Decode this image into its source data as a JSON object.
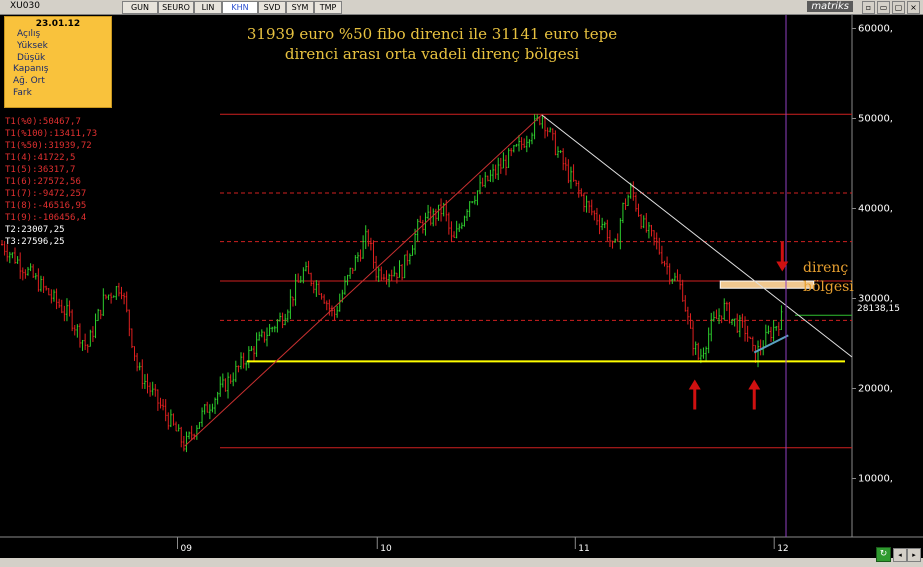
{
  "toolbar": {
    "symbol": "XU030",
    "buttons": [
      "GUN",
      "SEURO",
      "LIN",
      "KHN",
      "SVD",
      "SYM",
      "TMP"
    ],
    "active": "KHN",
    "brand": "matriks"
  },
  "infobox": {
    "date": "23.01.12",
    "rows": [
      "Açılış",
      "Yüksek",
      "Düşük",
      "Kapanış",
      "Ağ. Ort",
      "Fark"
    ]
  },
  "fibo_labels": [
    {
      "text": "T1(%0):50467,7",
      "color": "#e03030"
    },
    {
      "text": "T1(%100):13411,73",
      "color": "#e03030"
    },
    {
      "text": "T1(%50):31939,72",
      "color": "#e03030"
    },
    {
      "text": "T1(4):41722,5",
      "color": "#e03030"
    },
    {
      "text": "T1(5):36317,7",
      "color": "#e03030"
    },
    {
      "text": "T1(6):27572,56",
      "color": "#e03030"
    },
    {
      "text": "T1(7):-9472,257",
      "color": "#e03030"
    },
    {
      "text": "T1(8):-46516,95",
      "color": "#e03030"
    },
    {
      "text": "T1(9):-106456,4",
      "color": "#e03030"
    },
    {
      "text": "T2:23007,25",
      "color": "#ffffff"
    },
    {
      "text": "T3:27596,25",
      "color": "#ffffff"
    }
  ],
  "annotation": {
    "line1": "31939 euro %50 fibo direnci ile 31141 euro tepe",
    "line2": "direnci arası orta vadeli direnç bölgesi"
  },
  "resistance_label": {
    "line1": "direnç",
    "line2": "bölgesi"
  },
  "last_price_label": "28138,15",
  "chart_data": {
    "type": "candlestick",
    "title": "",
    "y_ticks": [
      10000,
      20000,
      30000,
      40000,
      50000,
      60000
    ],
    "y_tick_labels": [
      "10000,",
      "20000,",
      "30000,",
      "40000,",
      "50000,",
      "60000,"
    ],
    "ylim": [
      3500,
      61500
    ],
    "x_ticks": [
      {
        "label": "09",
        "t": 0.21
      },
      {
        "label": "10",
        "t": 0.445
      },
      {
        "label": "11",
        "t": 0.678
      },
      {
        "label": "12",
        "t": 0.912
      }
    ],
    "last_price": 28138.15,
    "fibo_levels": [
      {
        "value": 50467.7,
        "style": "solid"
      },
      {
        "value": 41722.5,
        "style": "dashed"
      },
      {
        "value": 36317.7,
        "style": "dashed"
      },
      {
        "value": 31939.72,
        "style": "solid"
      },
      {
        "value": 27572.56,
        "style": "dashed"
      },
      {
        "value": 13411.73,
        "style": "solid"
      }
    ],
    "fibo_line_color": "#d02020",
    "support_level": 23007.25,
    "support_color": "#ffff00",
    "resistance_zone": [
      31141,
      31939
    ],
    "resistance_color": "#f0c890",
    "series_path": [
      [
        0.0,
        36000
      ],
      [
        0.02,
        34000
      ],
      [
        0.05,
        31000
      ],
      [
        0.08,
        28000
      ],
      [
        0.1,
        24500
      ],
      [
        0.12,
        30000
      ],
      [
        0.14,
        31500
      ],
      [
        0.16,
        22000
      ],
      [
        0.18,
        19000
      ],
      [
        0.2,
        16000
      ],
      [
        0.215,
        13600
      ],
      [
        0.235,
        17000
      ],
      [
        0.25,
        19000
      ],
      [
        0.28,
        22500
      ],
      [
        0.3,
        25000
      ],
      [
        0.33,
        28000
      ],
      [
        0.355,
        33000
      ],
      [
        0.375,
        31000
      ],
      [
        0.39,
        28000
      ],
      [
        0.41,
        33000
      ],
      [
        0.43,
        37000
      ],
      [
        0.44,
        33000
      ],
      [
        0.47,
        33000
      ],
      [
        0.49,
        38000
      ],
      [
        0.52,
        40000
      ],
      [
        0.53,
        36000
      ],
      [
        0.55,
        41000
      ],
      [
        0.58,
        44000
      ],
      [
        0.61,
        47000
      ],
      [
        0.635,
        50400
      ],
      [
        0.65,
        47000
      ],
      [
        0.665,
        44000
      ],
      [
        0.69,
        40000
      ],
      [
        0.71,
        38000
      ],
      [
        0.72,
        35000
      ],
      [
        0.73,
        40000
      ],
      [
        0.74,
        42000
      ],
      [
        0.755,
        38000
      ],
      [
        0.77,
        36000
      ],
      [
        0.785,
        33000
      ],
      [
        0.8,
        31000
      ],
      [
        0.81,
        26000
      ],
      [
        0.82,
        23200
      ],
      [
        0.835,
        27000
      ],
      [
        0.85,
        29000
      ],
      [
        0.86,
        27500
      ],
      [
        0.875,
        26500
      ],
      [
        0.885,
        23500
      ],
      [
        0.895,
        25000
      ],
      [
        0.91,
        27000
      ],
      [
        0.92,
        28138
      ]
    ],
    "trendlines": [
      {
        "from": [
          0.215,
          13600
        ],
        "to": [
          0.635,
          50400
        ],
        "color": "#c83030"
      },
      {
        "from": [
          0.635,
          50400
        ],
        "to": [
          1.0,
          23500
        ],
        "color": "#e0e0e0"
      },
      {
        "from": [
          0.885,
          24000
        ],
        "to": [
          0.925,
          25900
        ],
        "color": "#5aa0c0"
      }
    ],
    "arrows": [
      {
        "t": 0.815,
        "value": 21000,
        "dir": "up",
        "color": "#d01010"
      },
      {
        "t": 0.885,
        "value": 21000,
        "dir": "up",
        "color": "#d01010"
      },
      {
        "t": 0.918,
        "value": 33000,
        "dir": "down",
        "color": "#d01010"
      }
    ],
    "cursor_t": 0.92,
    "colors": {
      "up": "#2ed02e",
      "down": "#e02020",
      "grid": "#6e6e6e",
      "axis": "#8a8a8a",
      "cursor": "#9040c0"
    }
  }
}
